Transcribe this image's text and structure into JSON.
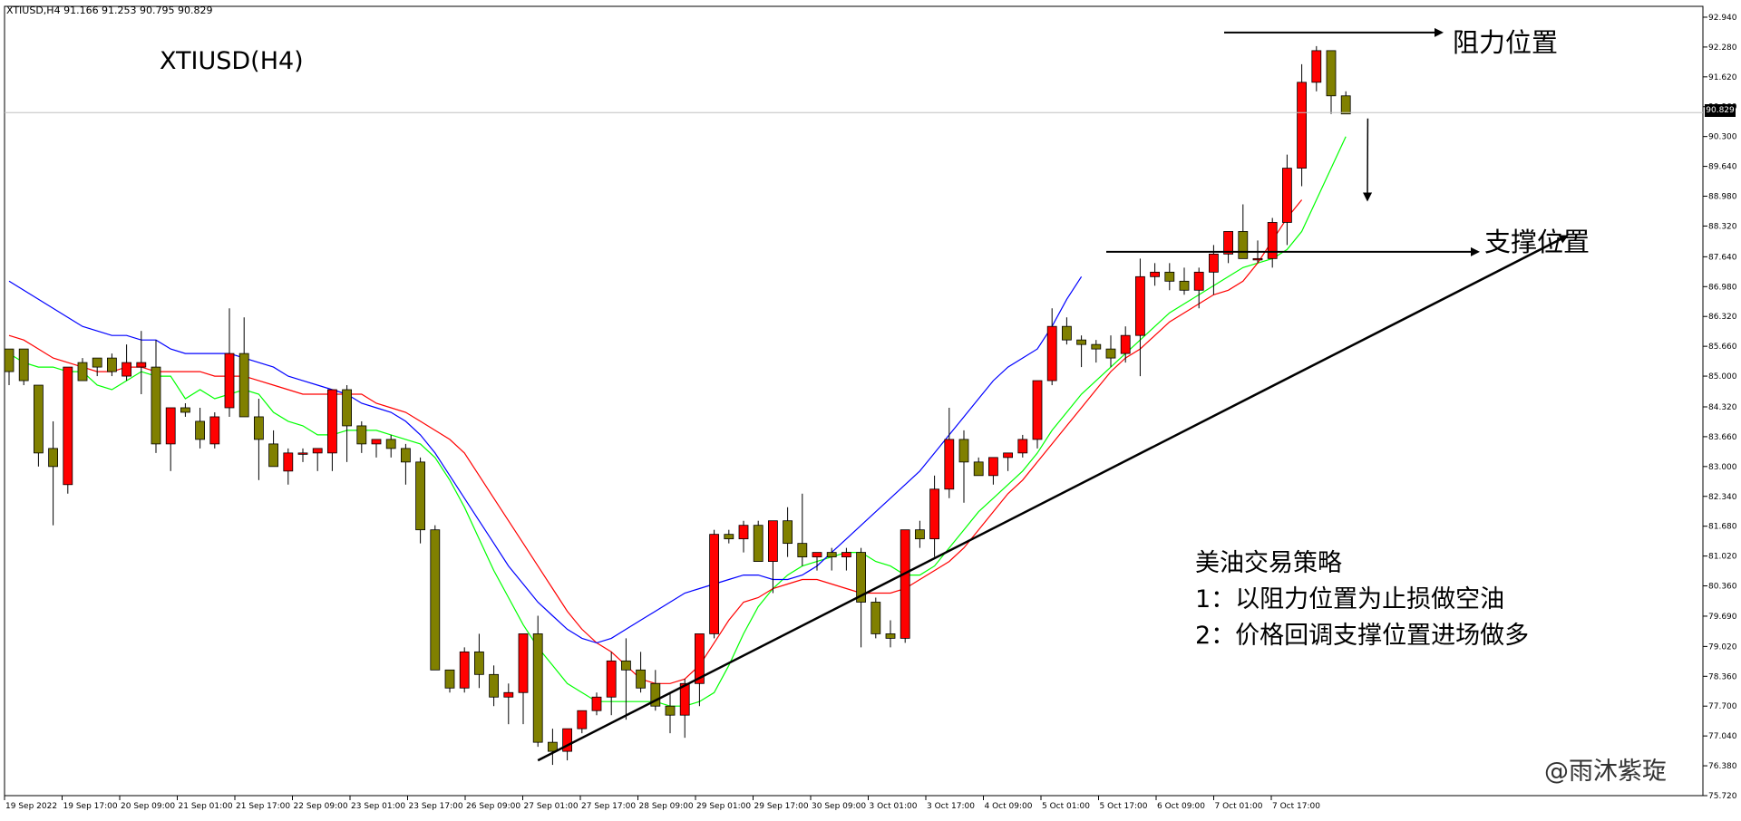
{
  "header": {
    "symbol_info": "XTIUSD,H4  91.166 91.253 90.795 90.829",
    "title": "XTIUSD(H4)"
  },
  "annotations": {
    "resistance": "阻力位置",
    "support": "支撑位置",
    "strategy_title": "美油交易策略",
    "strategy_line1": "1：以阻力位置为止损做空油",
    "strategy_line2": "2：价格回调支撑位置进场做多",
    "watermark": "@雨沐紫琁"
  },
  "colors": {
    "bull": "#ff0000",
    "bear": "#808000",
    "ma_fast": "#00ff00",
    "ma_mid": "#ff0000",
    "ma_slow": "#0000ff",
    "lines": "#000000"
  },
  "chart_data": {
    "type": "candlestick",
    "symbol": "XTIUSD",
    "timeframe": "H4",
    "current_price": "90.829",
    "ylim": [
      75.72,
      93.18
    ],
    "y_ticks": [
      "92.940",
      "92.280",
      "91.620",
      "90.960",
      "90.300",
      "89.640",
      "88.980",
      "88.320",
      "87.640",
      "86.980",
      "86.320",
      "85.660",
      "85.000",
      "84.320",
      "83.660",
      "83.000",
      "82.340",
      "81.680",
      "81.020",
      "80.360",
      "79.690",
      "79.020",
      "78.360",
      "77.700",
      "77.040",
      "76.380",
      "75.720"
    ],
    "x_ticks": [
      "19 Sep 2022",
      "19 Sep 17:00",
      "20 Sep 09:00",
      "21 Sep 01:00",
      "21 Sep 17:00",
      "22 Sep 09:00",
      "23 Sep 01:00",
      "23 Sep 17:00",
      "26 Sep 09:00",
      "27 Sep 01:00",
      "27 Sep 17:00",
      "28 Sep 09:00",
      "29 Sep 01:00",
      "29 Sep 17:00",
      "30 Sep 09:00",
      "3 Oct 01:00",
      "3 Oct 17:00",
      "4 Oct 09:00",
      "5 Oct 01:00",
      "5 Oct 17:00",
      "6 Oct 09:00",
      "7 Oct 01:00",
      "7 Oct 17:00"
    ],
    "ohlc": [
      [
        85.6,
        85.6,
        84.8,
        85.1
      ],
      [
        85.6,
        85.6,
        84.8,
        84.9
      ],
      [
        84.8,
        84.8,
        83.0,
        83.3
      ],
      [
        83.4,
        84.0,
        81.7,
        83.0
      ],
      [
        82.6,
        85.2,
        82.4,
        85.2
      ],
      [
        85.3,
        85.4,
        85.0,
        84.9
      ],
      [
        85.4,
        85.4,
        85.0,
        85.2
      ],
      [
        85.4,
        85.5,
        85.0,
        85.1
      ],
      [
        85.0,
        85.7,
        84.9,
        85.3
      ],
      [
        85.2,
        86.0,
        84.6,
        85.3
      ],
      [
        85.2,
        85.8,
        83.3,
        83.5
      ],
      [
        83.5,
        84.3,
        82.9,
        84.3
      ],
      [
        84.3,
        84.4,
        84.1,
        84.2
      ],
      [
        84.0,
        84.3,
        83.4,
        83.6
      ],
      [
        83.5,
        84.2,
        83.4,
        84.1
      ],
      [
        84.3,
        86.5,
        84.1,
        85.5
      ],
      [
        85.5,
        86.3,
        84.1,
        84.1
      ],
      [
        84.1,
        84.5,
        82.7,
        83.6
      ],
      [
        83.5,
        83.8,
        83.0,
        83.0
      ],
      [
        82.9,
        83.4,
        82.6,
        83.3
      ],
      [
        83.3,
        83.4,
        83.1,
        83.3
      ],
      [
        83.3,
        83.4,
        82.9,
        83.4
      ],
      [
        83.3,
        84.7,
        82.9,
        84.7
      ],
      [
        84.7,
        84.8,
        83.1,
        83.9
      ],
      [
        83.9,
        84.0,
        83.3,
        83.5
      ],
      [
        83.5,
        83.6,
        83.2,
        83.6
      ],
      [
        83.6,
        83.7,
        83.2,
        83.4
      ],
      [
        83.4,
        83.5,
        82.6,
        83.1
      ],
      [
        83.1,
        83.2,
        81.3,
        81.6
      ],
      [
        81.6,
        81.7,
        78.6,
        78.5
      ],
      [
        78.5,
        78.5,
        78.0,
        78.1
      ],
      [
        78.1,
        79.0,
        78.0,
        78.9
      ],
      [
        78.9,
        79.3,
        78.1,
        78.4
      ],
      [
        78.4,
        78.6,
        77.7,
        77.9
      ],
      [
        77.9,
        78.2,
        77.3,
        78.0
      ],
      [
        78.0,
        79.3,
        77.3,
        79.3
      ],
      [
        79.3,
        79.7,
        76.8,
        76.9
      ],
      [
        76.9,
        77.2,
        76.4,
        76.7
      ],
      [
        76.7,
        77.2,
        76.5,
        77.2
      ],
      [
        77.2,
        77.5,
        77.1,
        77.6
      ],
      [
        77.6,
        78.0,
        77.5,
        77.9
      ],
      [
        77.9,
        78.9,
        77.5,
        78.7
      ],
      [
        78.7,
        79.2,
        77.4,
        78.5
      ],
      [
        78.5,
        78.9,
        78.0,
        78.1
      ],
      [
        78.2,
        78.5,
        77.6,
        77.7
      ],
      [
        77.7,
        78.0,
        77.1,
        77.5
      ],
      [
        77.5,
        78.3,
        77.0,
        78.2
      ],
      [
        78.2,
        79.2,
        77.7,
        79.3
      ],
      [
        79.3,
        81.6,
        79.2,
        81.5
      ],
      [
        81.5,
        81.6,
        81.3,
        81.4
      ],
      [
        81.4,
        81.8,
        81.1,
        81.7
      ],
      [
        81.7,
        81.8,
        81.0,
        80.9
      ],
      [
        80.9,
        81.8,
        80.2,
        81.8
      ],
      [
        81.8,
        82.1,
        81.0,
        81.3
      ],
      [
        81.3,
        82.4,
        80.8,
        81.0
      ],
      [
        81.0,
        81.1,
        80.7,
        81.1
      ],
      [
        81.1,
        81.2,
        80.7,
        81.0
      ],
      [
        81.0,
        81.2,
        80.7,
        81.1
      ],
      [
        81.1,
        81.2,
        79.0,
        80.0
      ],
      [
        80.0,
        80.1,
        79.2,
        79.3
      ],
      [
        79.3,
        79.6,
        79.0,
        79.2
      ],
      [
        79.2,
        81.6,
        79.1,
        81.6
      ],
      [
        81.6,
        81.8,
        81.2,
        81.4
      ],
      [
        81.4,
        82.8,
        81.0,
        82.5
      ],
      [
        82.5,
        84.3,
        82.3,
        83.6
      ],
      [
        83.6,
        83.8,
        82.2,
        83.1
      ],
      [
        83.1,
        83.2,
        82.8,
        82.8
      ],
      [
        82.8,
        83.2,
        82.6,
        83.2
      ],
      [
        83.2,
        83.3,
        82.9,
        83.3
      ],
      [
        83.3,
        83.7,
        83.2,
        83.6
      ],
      [
        83.6,
        84.9,
        83.4,
        84.9
      ],
      [
        84.9,
        86.5,
        84.8,
        86.1
      ],
      [
        86.1,
        86.3,
        85.7,
        85.8
      ],
      [
        85.8,
        85.9,
        85.2,
        85.7
      ],
      [
        85.7,
        85.8,
        85.3,
        85.6
      ],
      [
        85.6,
        85.9,
        85.2,
        85.4
      ],
      [
        85.5,
        86.1,
        85.3,
        85.9
      ],
      [
        85.9,
        87.6,
        85.0,
        87.2
      ],
      [
        87.2,
        87.5,
        87.0,
        87.3
      ],
      [
        87.3,
        87.5,
        86.9,
        87.1
      ],
      [
        87.1,
        87.4,
        86.8,
        86.9
      ],
      [
        86.9,
        87.4,
        86.5,
        87.3
      ],
      [
        87.3,
        87.9,
        86.8,
        87.7
      ],
      [
        87.7,
        88.2,
        87.5,
        88.2
      ],
      [
        88.2,
        88.8,
        87.6,
        87.6
      ],
      [
        87.6,
        88.0,
        87.5,
        87.6
      ],
      [
        87.6,
        88.5,
        87.4,
        88.4
      ],
      [
        88.4,
        89.9,
        87.9,
        89.6
      ],
      [
        89.6,
        91.9,
        89.2,
        91.5
      ],
      [
        91.5,
        92.3,
        91.3,
        92.2
      ],
      [
        92.2,
        92.2,
        90.8,
        91.2
      ],
      [
        91.2,
        91.3,
        90.8,
        90.8
      ]
    ],
    "ma_fast": [
      85.5,
      85.3,
      85.2,
      85.2,
      85.1,
      85.1,
      84.8,
      84.7,
      84.9,
      85.1,
      85.0,
      85.0,
      84.5,
      84.7,
      84.5,
      84.6,
      84.7,
      84.6,
      84.2,
      84.0,
      83.9,
      83.7,
      83.7,
      83.8,
      83.8,
      83.8,
      83.7,
      83.6,
      83.5,
      83.2,
      82.7,
      82.1,
      81.4,
      80.7,
      80.1,
      79.5,
      79.0,
      78.6,
      78.2,
      78.0,
      77.8,
      77.8,
      77.8,
      77.8,
      77.8,
      77.7,
      77.7,
      77.8,
      78.0,
      78.6,
      79.3,
      79.9,
      80.3,
      80.6,
      80.8,
      80.9,
      81.0,
      81.1,
      81.1,
      80.9,
      80.8,
      80.6,
      80.6,
      80.8,
      81.2,
      81.6,
      82.0,
      82.3,
      82.6,
      82.9,
      83.3,
      83.8,
      84.2,
      84.6,
      84.9,
      85.2,
      85.5,
      85.8,
      86.1,
      86.4,
      86.6,
      86.8,
      87.0,
      87.2,
      87.4,
      87.5,
      87.6,
      87.8,
      88.2,
      88.9,
      89.6,
      90.3
    ],
    "ma_mid": [
      85.9,
      85.8,
      85.6,
      85.4,
      85.3,
      85.2,
      85.1,
      85.1,
      85.2,
      85.2,
      85.1,
      85.1,
      85.1,
      85.1,
      85.0,
      85.0,
      85.0,
      84.9,
      84.8,
      84.7,
      84.6,
      84.6,
      84.6,
      84.6,
      84.6,
      84.4,
      84.3,
      84.2,
      84.0,
      83.8,
      83.6,
      83.3,
      82.8,
      82.3,
      81.8,
      81.3,
      80.8,
      80.3,
      79.8,
      79.4,
      79.1,
      78.9,
      78.6,
      78.3,
      78.2,
      78.2,
      78.3,
      78.6,
      79.1,
      79.6,
      80.0,
      80.1,
      80.3,
      80.4,
      80.5,
      80.5,
      80.4,
      80.3,
      80.2,
      80.2,
      80.2,
      80.3,
      80.5,
      80.7,
      80.9,
      81.2,
      81.6,
      82.0,
      82.4,
      82.7,
      83.1,
      83.5,
      83.9,
      84.3,
      84.7,
      85.1,
      85.4,
      85.6,
      85.9,
      86.2,
      86.4,
      86.6,
      86.8,
      86.9,
      87.1,
      87.5,
      88.0,
      88.5,
      88.9
    ],
    "ma_slow": [
      87.1,
      86.9,
      86.7,
      86.5,
      86.3,
      86.1,
      86.0,
      85.9,
      85.9,
      85.8,
      85.8,
      85.6,
      85.5,
      85.5,
      85.5,
      85.5,
      85.4,
      85.3,
      85.2,
      85.0,
      84.9,
      84.8,
      84.7,
      84.6,
      84.4,
      84.3,
      84.2,
      84.0,
      83.7,
      83.3,
      82.8,
      82.3,
      81.8,
      81.3,
      80.8,
      80.4,
      80.0,
      79.7,
      79.4,
      79.2,
      79.1,
      79.2,
      79.4,
      79.6,
      79.8,
      80.0,
      80.2,
      80.3,
      80.4,
      80.5,
      80.6,
      80.6,
      80.5,
      80.5,
      80.6,
      80.8,
      81.1,
      81.4,
      81.7,
      82.0,
      82.3,
      82.6,
      82.9,
      83.3,
      83.7,
      84.1,
      84.5,
      84.9,
      85.2,
      85.4,
      85.6,
      86.1,
      86.7,
      87.2
    ]
  }
}
